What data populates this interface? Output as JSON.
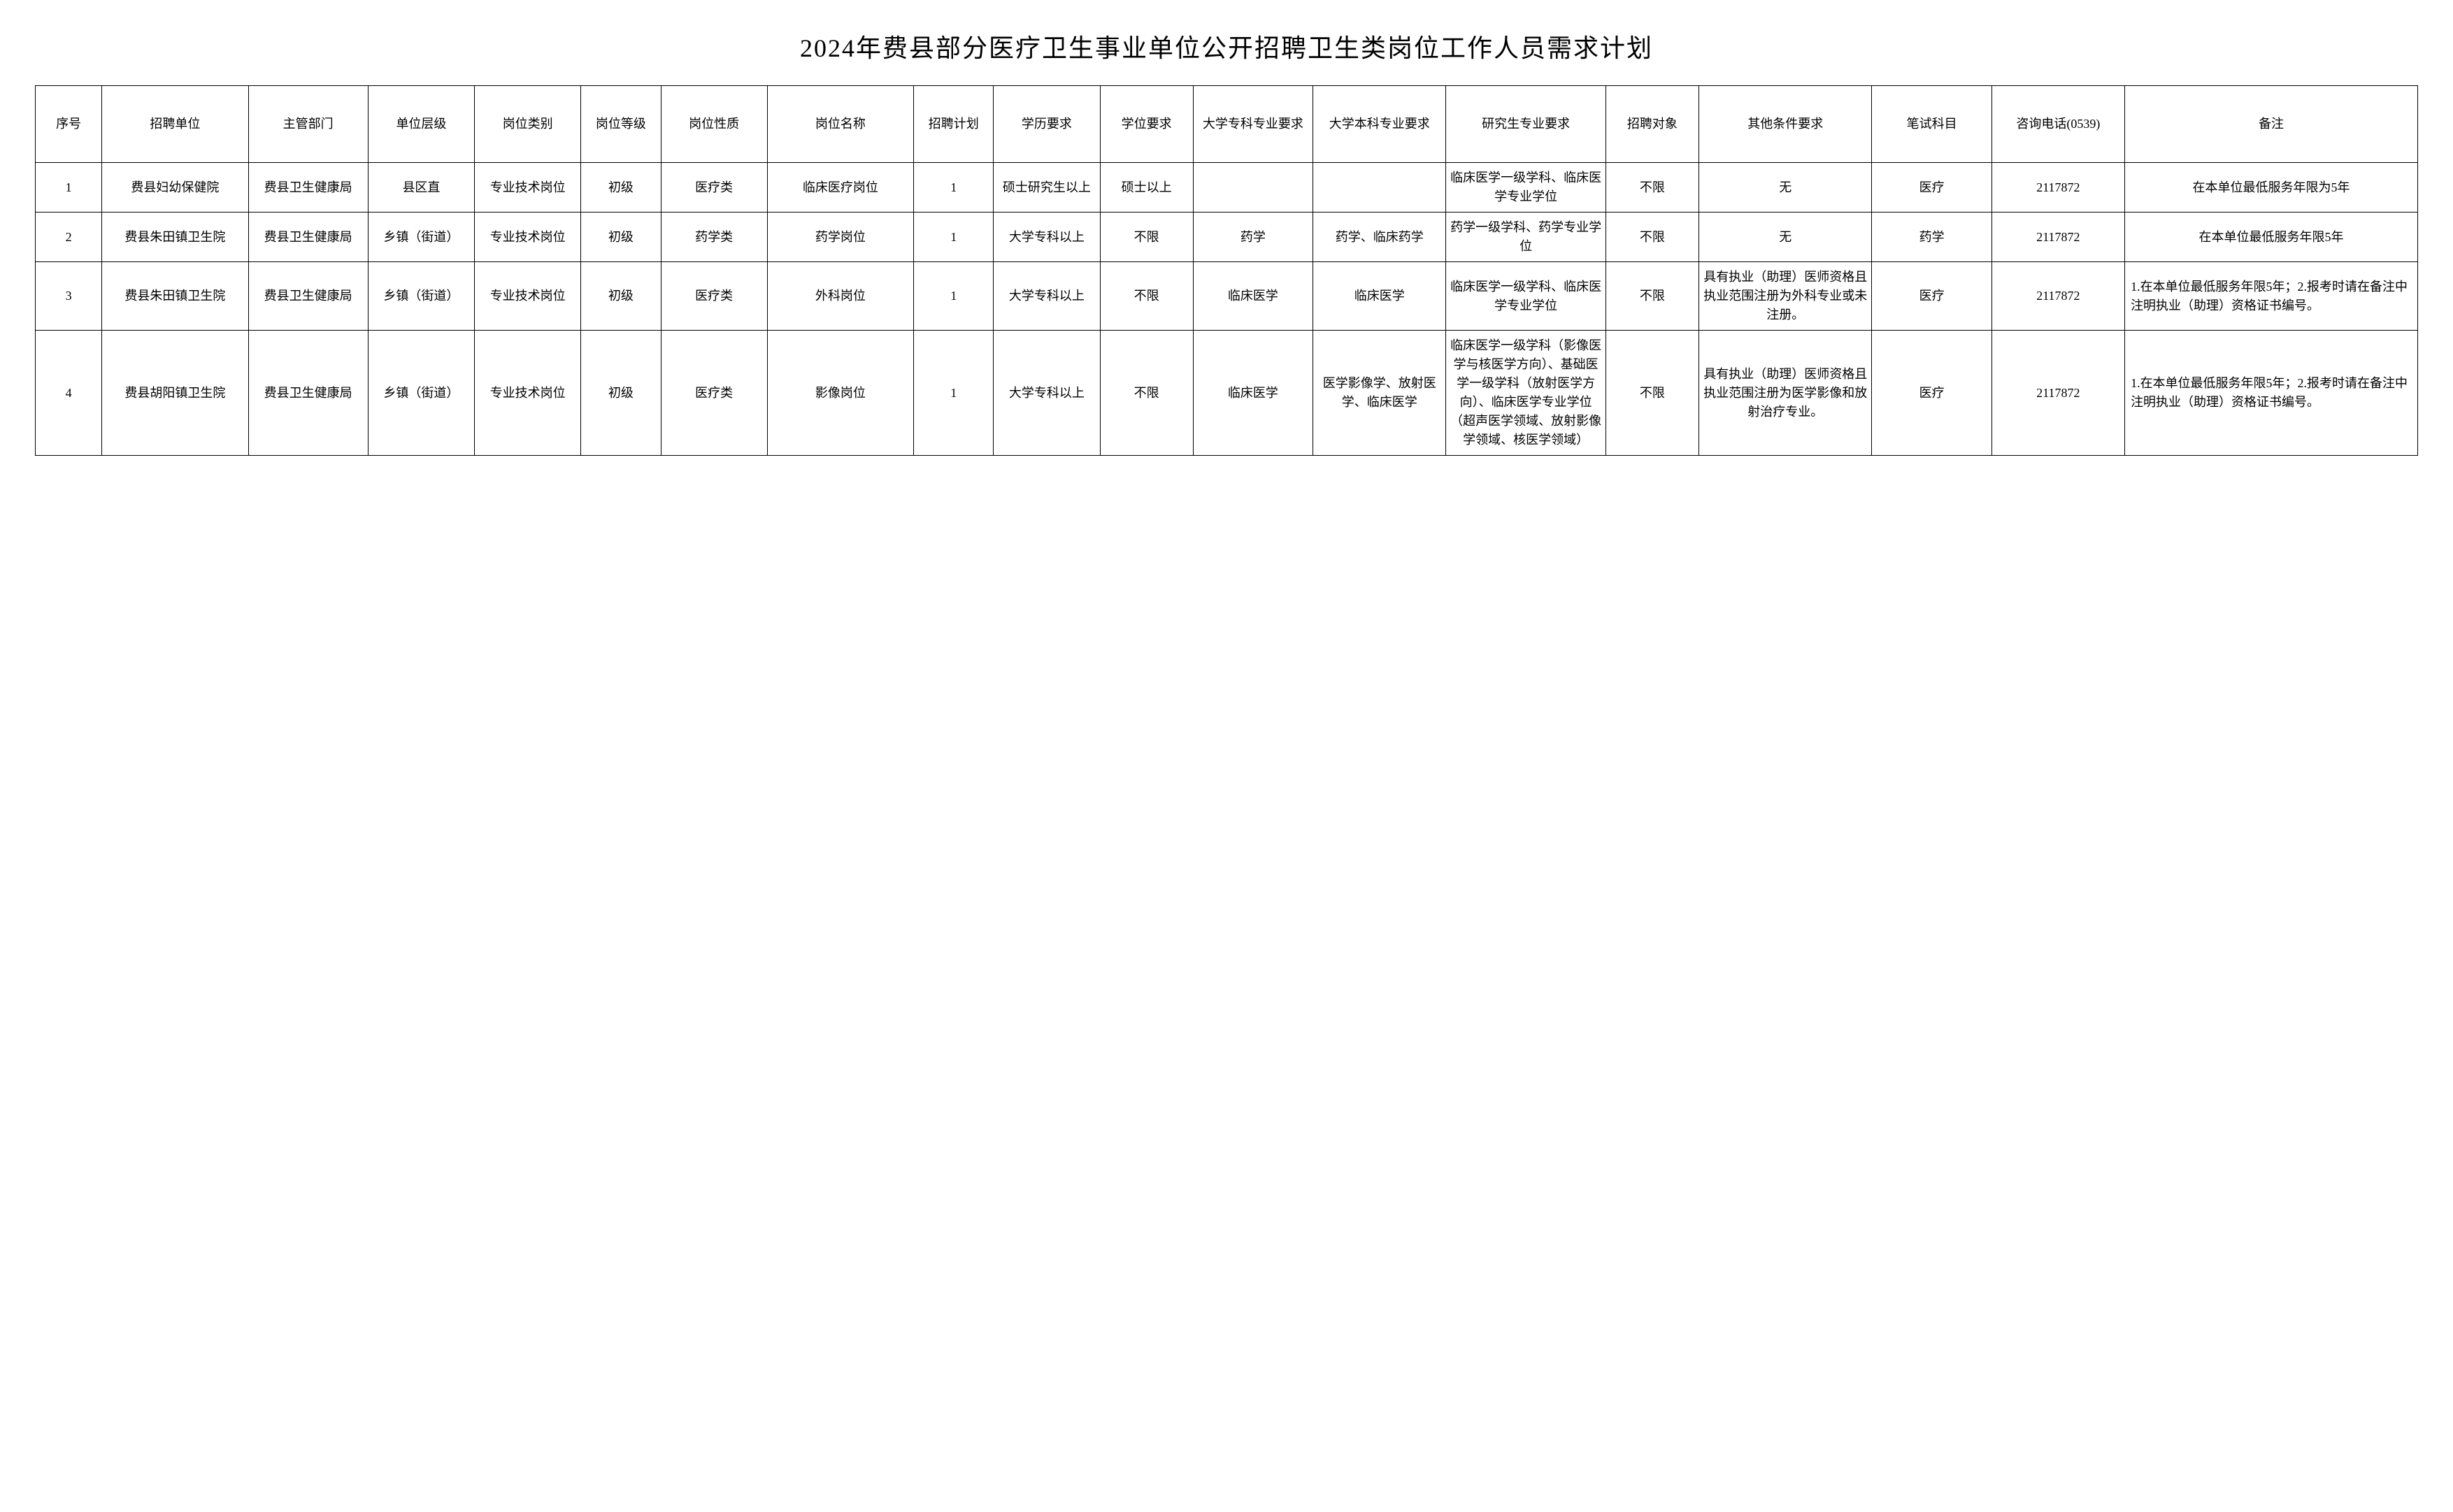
{
  "title": "2024年费县部分医疗卫生事业单位公开招聘卫生类岗位工作人员需求计划",
  "table": {
    "columns": [
      "序号",
      "招聘单位",
      "主管部门",
      "单位层级",
      "岗位类别",
      "岗位等级",
      "岗位性质",
      "岗位名称",
      "招聘计划",
      "学历要求",
      "学位要求",
      "大学专科专业要求",
      "大学本科专业要求",
      "研究生专业要求",
      "招聘对象",
      "其他条件要求",
      "笔试科目",
      "咨询电话(0539)",
      "备注"
    ],
    "rows": [
      {
        "seq": "1",
        "unit": "费县妇幼保健院",
        "dept": "费县卫生健康局",
        "level": "县区直",
        "category": "专业技术岗位",
        "grade": "初级",
        "nature": "医疗类",
        "posname": "临床医疗岗位",
        "count": "1",
        "edu": "硕士研究生以上",
        "degree": "硕士以上",
        "spec1": "",
        "spec2": "",
        "spec3": "临床医学一级学科、临床医学专业学位",
        "target": "不限",
        "other": "无",
        "exam": "医疗",
        "phone": "2117872",
        "remark": "在本单位最低服务年限为5年"
      },
      {
        "seq": "2",
        "unit": "费县朱田镇卫生院",
        "dept": "费县卫生健康局",
        "level": "乡镇（街道）",
        "category": "专业技术岗位",
        "grade": "初级",
        "nature": "药学类",
        "posname": "药学岗位",
        "count": "1",
        "edu": "大学专科以上",
        "degree": "不限",
        "spec1": "药学",
        "spec2": "药学、临床药学",
        "spec3": "药学一级学科、药学专业学位",
        "target": "不限",
        "other": "无",
        "exam": "药学",
        "phone": "2117872",
        "remark": "在本单位最低服务年限5年"
      },
      {
        "seq": "3",
        "unit": "费县朱田镇卫生院",
        "dept": "费县卫生健康局",
        "level": "乡镇（街道）",
        "category": "专业技术岗位",
        "grade": "初级",
        "nature": "医疗类",
        "posname": "外科岗位",
        "count": "1",
        "edu": "大学专科以上",
        "degree": "不限",
        "spec1": "临床医学",
        "spec2": "临床医学",
        "spec3": "临床医学一级学科、临床医学专业学位",
        "target": "不限",
        "other": "具有执业（助理）医师资格且执业范围注册为外科专业或未注册。",
        "exam": "医疗",
        "phone": "2117872",
        "remark": "1.在本单位最低服务年限5年；2.报考时请在备注中注明执业（助理）资格证书编号。"
      },
      {
        "seq": "4",
        "unit": "费县胡阳镇卫生院",
        "dept": "费县卫生健康局",
        "level": "乡镇（街道）",
        "category": "专业技术岗位",
        "grade": "初级",
        "nature": "医疗类",
        "posname": "影像岗位",
        "count": "1",
        "edu": "大学专科以上",
        "degree": "不限",
        "spec1": "临床医学",
        "spec2": "医学影像学、放射医学、临床医学",
        "spec3": "临床医学一级学科（影像医学与核医学方向）、基础医学一级学科（放射医学方向）、临床医学专业学位（超声医学领域、放射影像学领域、核医学领域）",
        "target": "不限",
        "other": "具有执业（助理）医师资格且执业范围注册为医学影像和放射治疗专业。",
        "exam": "医疗",
        "phone": "2117872",
        "remark": "1.在本单位最低服务年限5年；2.报考时请在备注中注明执业（助理）资格证书编号。"
      }
    ]
  }
}
